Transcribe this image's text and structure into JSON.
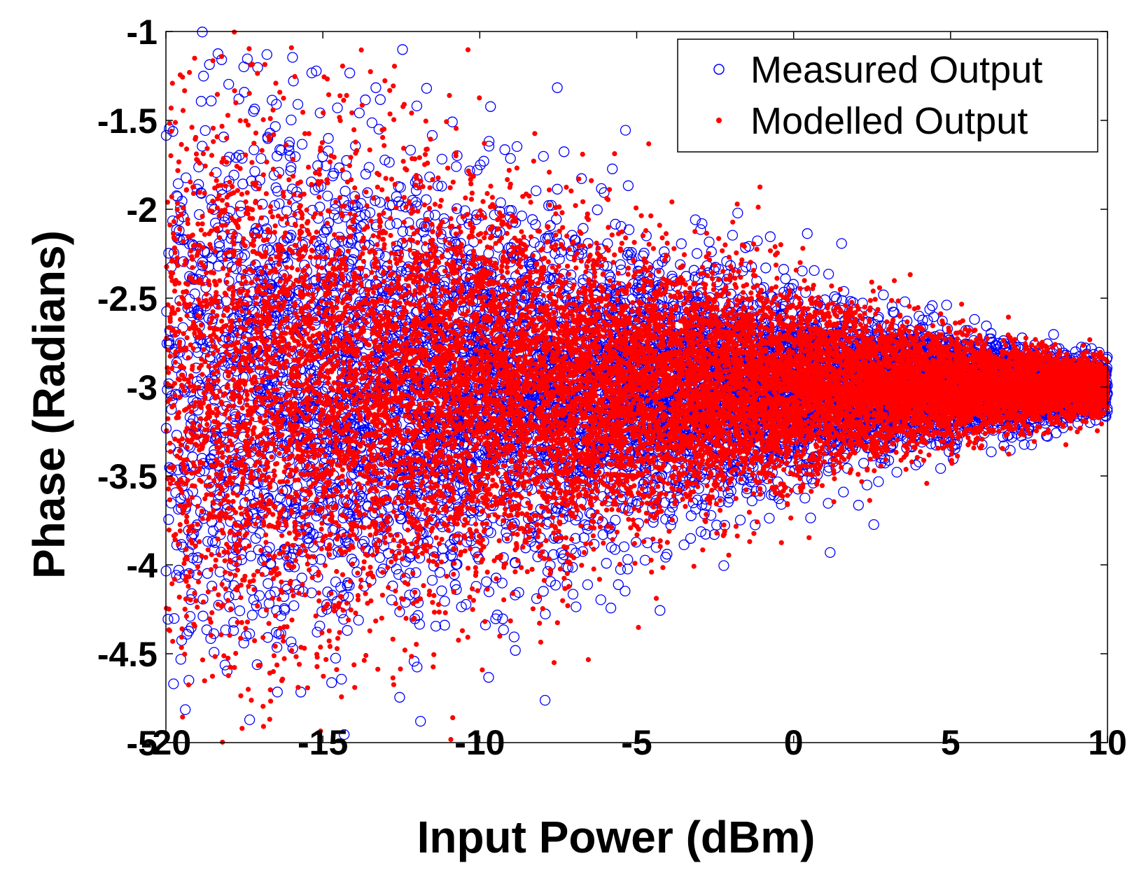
{
  "chart_data": {
    "type": "scatter",
    "title": "",
    "xlabel": "Input Power (dBm)",
    "ylabel": "Phase (Radians)",
    "xlim": [
      -20,
      10
    ],
    "ylim": [
      -5,
      -1
    ],
    "xticks": [
      -20,
      -15,
      -10,
      -5,
      0,
      5,
      10
    ],
    "xtick_labels": [
      "-20",
      "-15",
      "-10",
      "-5",
      "0",
      "5",
      "10"
    ],
    "yticks": [
      -1,
      -1.5,
      -2,
      -2.5,
      -3,
      -3.5,
      -4,
      -4.5,
      -5
    ],
    "ytick_labels": [
      "-1",
      "-1.5",
      "-2",
      "-2.5",
      "-3",
      "-3.5",
      "-4",
      "-4.5",
      "-5"
    ],
    "grid": false,
    "legend_position": "top-right",
    "series": [
      {
        "name": "Measured Output",
        "marker": "open-circle",
        "color": "#0000ff",
        "center_phase": -3.0,
        "spread_at_xmin": 1.7,
        "spread_at_xmax": 0.15,
        "x_range": [
          -20,
          10
        ],
        "count": 9000
      },
      {
        "name": "Modelled Output",
        "marker": "filled-dot",
        "color": "#ff0000",
        "center_phase": -3.0,
        "spread_at_xmin": 1.7,
        "spread_at_xmax": 0.15,
        "x_range": [
          -20,
          10
        ],
        "count": 16000
      }
    ],
    "legend": [
      {
        "label": "Measured Output",
        "marker": "open-circle",
        "color": "#0000ff"
      },
      {
        "label": "Modelled Output",
        "marker": "filled-dot",
        "color": "#ff0000"
      }
    ]
  }
}
